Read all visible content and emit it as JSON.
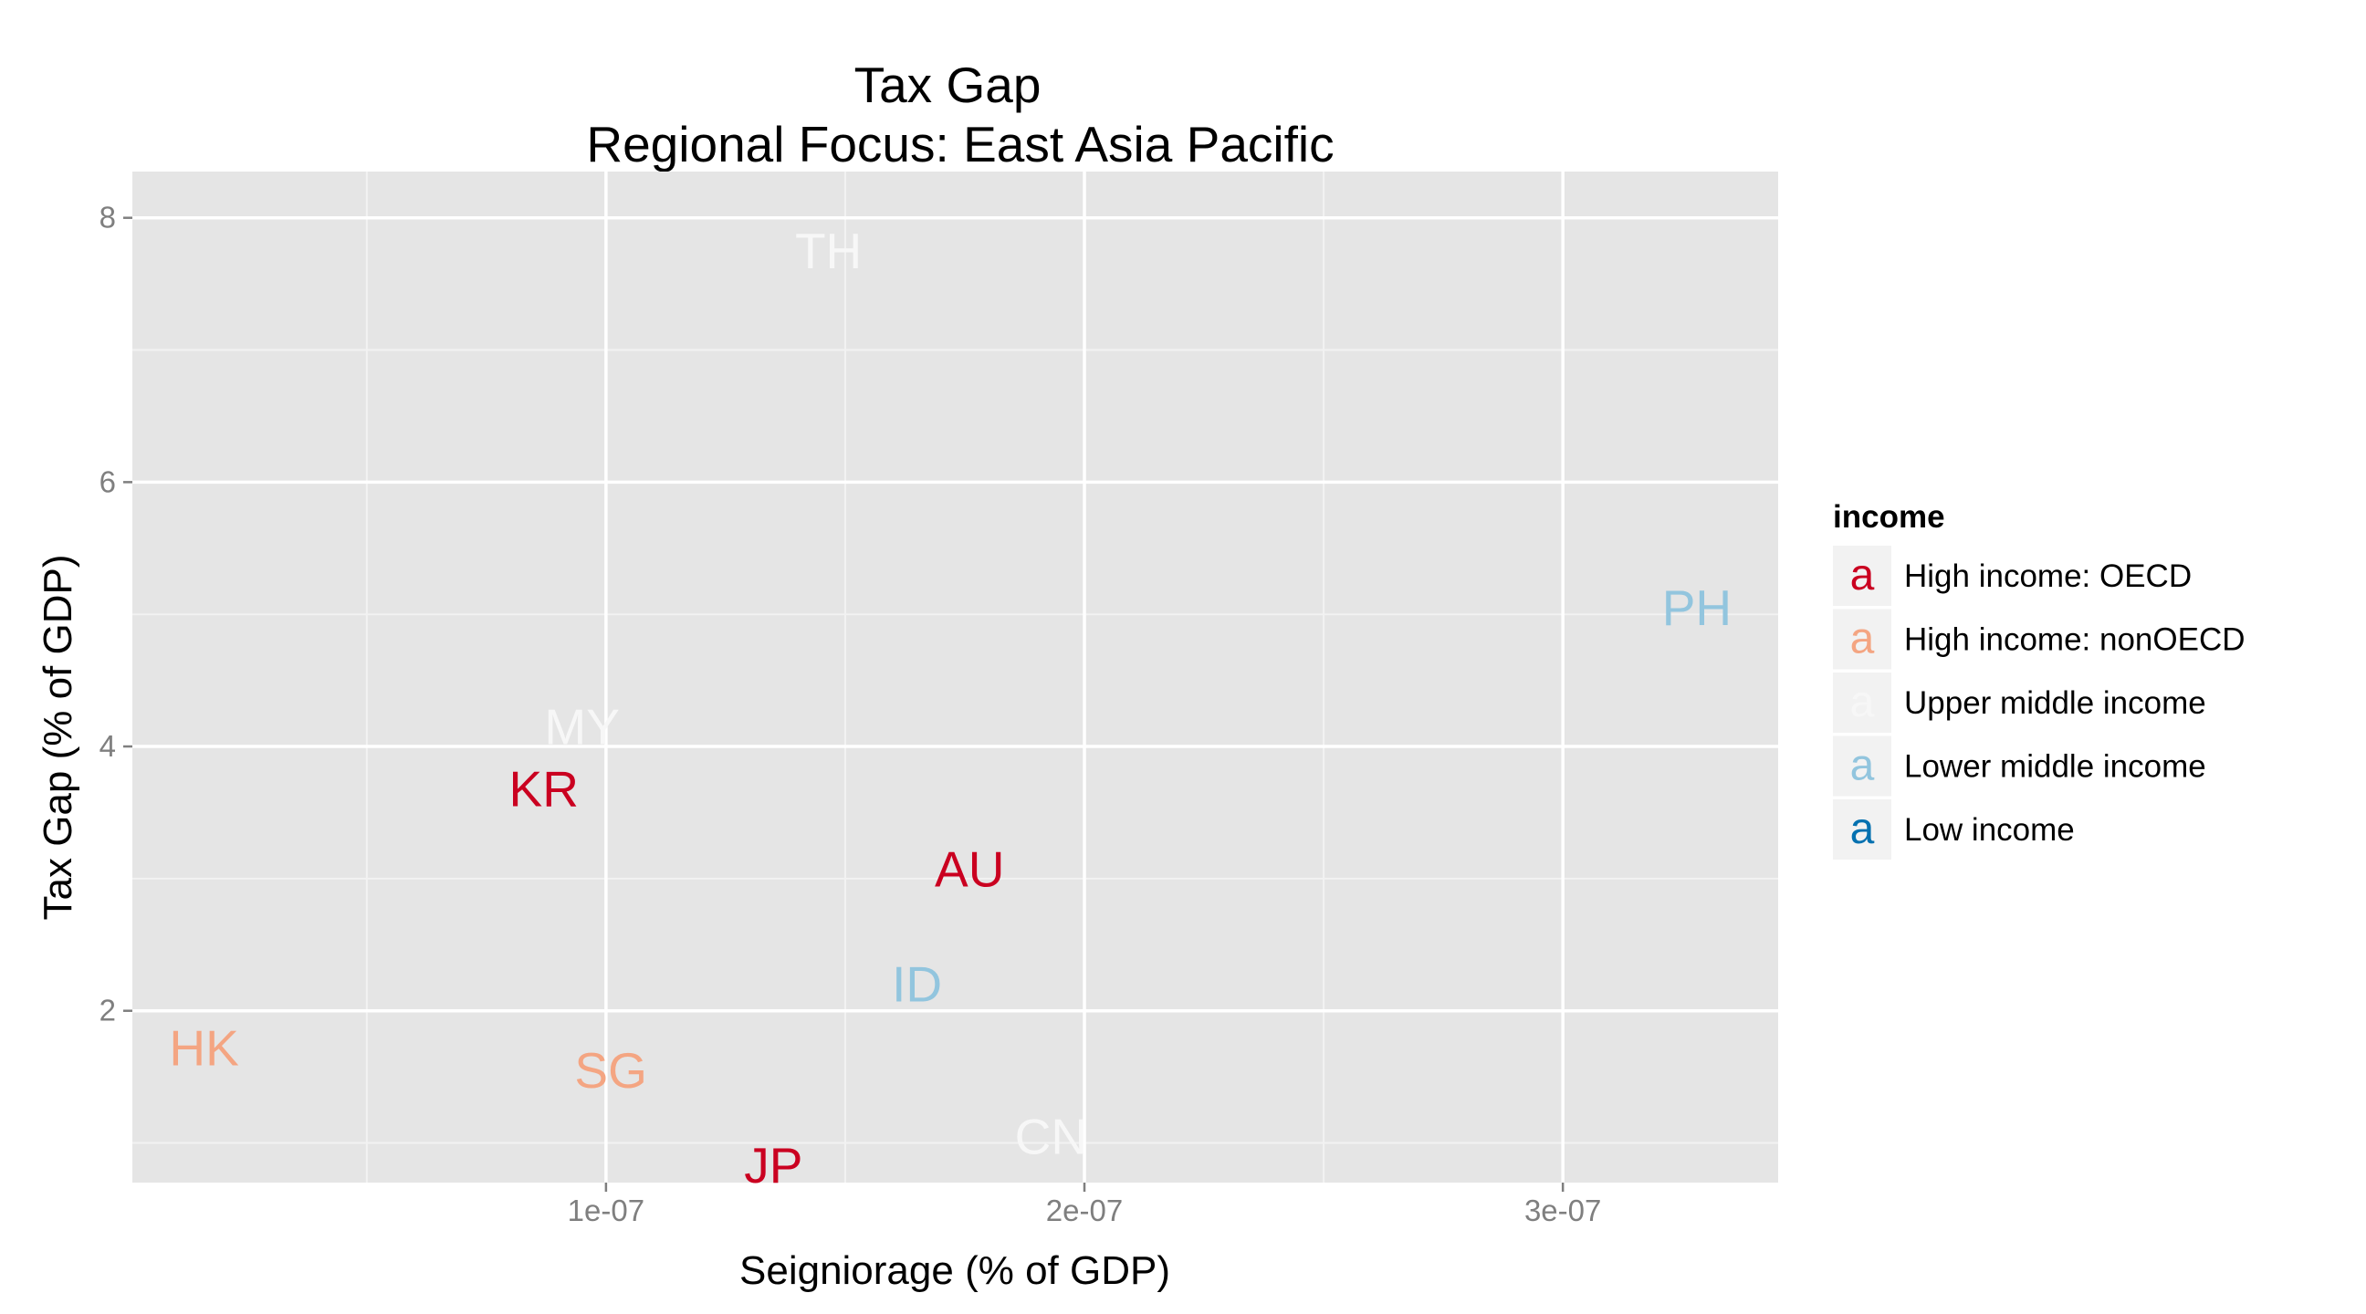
{
  "chart_data": {
    "type": "scatter",
    "title": "Tax Gap",
    "subtitle": "Regional Focus: East Asia Pacific",
    "xlabel": "Seigniorage (% of GDP)",
    "ylabel": "Tax Gap (% of GDP)",
    "xlim": [
      1e-09,
      3.45e-07
    ],
    "ylim": [
      0.7,
      8.35
    ],
    "x_ticks": [
      {
        "value": 1e-07,
        "label": "1e-07"
      },
      {
        "value": 2e-07,
        "label": "2e-07"
      },
      {
        "value": 3e-07,
        "label": "3e-07"
      }
    ],
    "y_ticks": [
      {
        "value": 2,
        "label": "2"
      },
      {
        "value": 4,
        "label": "4"
      },
      {
        "value": 6,
        "label": "6"
      },
      {
        "value": 8,
        "label": "8"
      }
    ],
    "grid": true,
    "legend": {
      "title": "income",
      "position": "right",
      "glyph": "a",
      "entries": [
        {
          "label": "High income: OECD",
          "color": "#CA0020"
        },
        {
          "label": "High income: nonOECD",
          "color": "#F4A582"
        },
        {
          "label": "Upper middle income",
          "color": "#F7F7F7"
        },
        {
          "label": "Lower middle income",
          "color": "#92C5DE"
        },
        {
          "label": "Low income",
          "color": "#0571B0"
        }
      ]
    },
    "points": [
      {
        "label": "TH",
        "x": 1.465e-07,
        "y": 7.75,
        "income": 2
      },
      {
        "label": "PH",
        "x": 3.28e-07,
        "y": 5.05,
        "income": 3
      },
      {
        "label": "MY",
        "x": 9.5e-08,
        "y": 4.15,
        "income": 2
      },
      {
        "label": "KR",
        "x": 8.7e-08,
        "y": 3.68,
        "income": 0
      },
      {
        "label": "AU",
        "x": 1.76e-07,
        "y": 3.07,
        "income": 0
      },
      {
        "label": "ID",
        "x": 1.65e-07,
        "y": 2.2,
        "income": 3
      },
      {
        "label": "HK",
        "x": 1.6e-08,
        "y": 1.72,
        "income": 1
      },
      {
        "label": "SG",
        "x": 1.01e-07,
        "y": 1.55,
        "income": 1
      },
      {
        "label": "CN",
        "x": 1.93e-07,
        "y": 1.05,
        "income": 2
      },
      {
        "label": "JP",
        "x": 1.35e-07,
        "y": 0.83,
        "income": 0
      }
    ]
  }
}
